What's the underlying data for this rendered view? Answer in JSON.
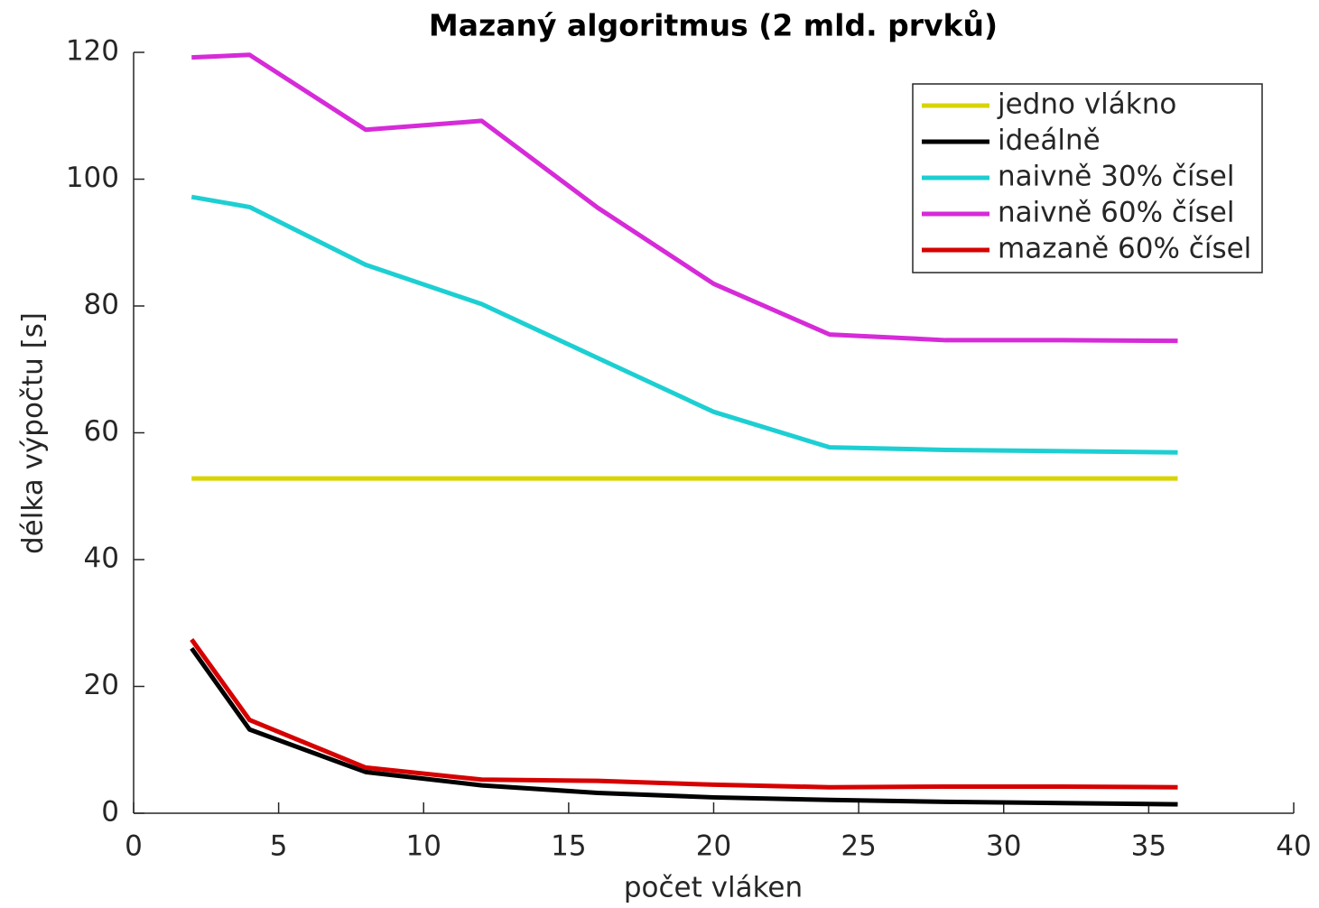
{
  "chart_data": {
    "type": "line",
    "title": "Mazaný algoritmus (2 mld. prvků)",
    "x_label": "počet vláken",
    "y_label": "délka výpočtu [s]",
    "x": [
      2,
      4,
      8,
      12,
      16,
      20,
      24,
      28,
      32,
      36
    ],
    "series": [
      {
        "name": "jedno vlákno",
        "color": "#d8d400",
        "values": [
          52.8,
          52.8,
          52.8,
          52.8,
          52.8,
          52.8,
          52.8,
          52.8,
          52.8,
          52.8
        ]
      },
      {
        "name": "ideálně",
        "color": "#000000",
        "values": [
          26,
          13.2,
          6.5,
          4.4,
          3.2,
          2.5,
          2.1,
          1.8,
          1.6,
          1.4
        ]
      },
      {
        "name": "naivně 30% čísel",
        "color": "#1dcfd2",
        "values": [
          97.2,
          95.6,
          86.5,
          80.3,
          71.8,
          63.3,
          57.7,
          57.3,
          57.1,
          56.9
        ]
      },
      {
        "name": "naivně 60% čísel",
        "color": "#d62bd8",
        "values": [
          119.2,
          119.6,
          107.8,
          109.2,
          95.5,
          83.5,
          75.5,
          74.6,
          74.6,
          74.5
        ]
      },
      {
        "name": "mazaně 60% čísel",
        "color": "#d60000",
        "values": [
          27.4,
          14.7,
          7.2,
          5.3,
          5.1,
          4.5,
          4.1,
          4.2,
          4.2,
          4.1
        ]
      }
    ],
    "xlim": [
      0,
      40
    ],
    "xticks": [
      0,
      5,
      10,
      15,
      20,
      25,
      30,
      35,
      40
    ],
    "ylim": [
      0,
      120
    ],
    "yticks": [
      0,
      20,
      40,
      60,
      80,
      100,
      120
    ],
    "legend": "northeast"
  }
}
